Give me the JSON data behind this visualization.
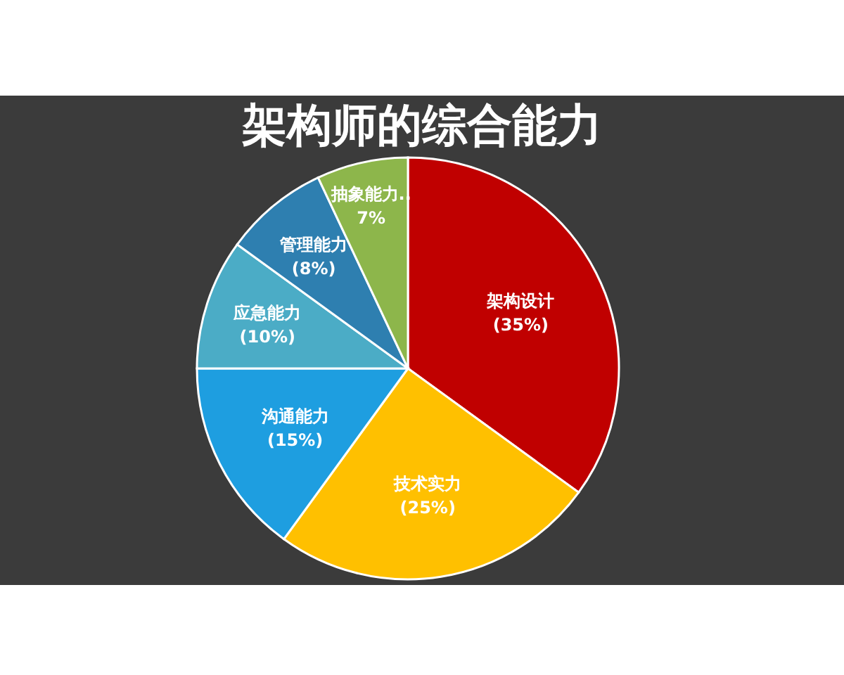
{
  "chart_data": {
    "type": "pie",
    "title": "架构师的综合能力",
    "categories": [
      "架构设计",
      "技术实力",
      "沟通能力",
      "应急能力",
      "管理能力",
      "抽象能力.."
    ],
    "values": [
      35,
      25,
      15,
      10,
      8,
      7
    ],
    "value_labels": [
      "(35%)",
      "(25%)",
      "(15%)",
      "(10%)",
      "(8%)",
      "7%"
    ],
    "colors": [
      "#c00000",
      "#ffc000",
      "#1e9ee0",
      "#4bacc6",
      "#2e7fb0",
      "#8db64b"
    ],
    "legend": false
  }
}
